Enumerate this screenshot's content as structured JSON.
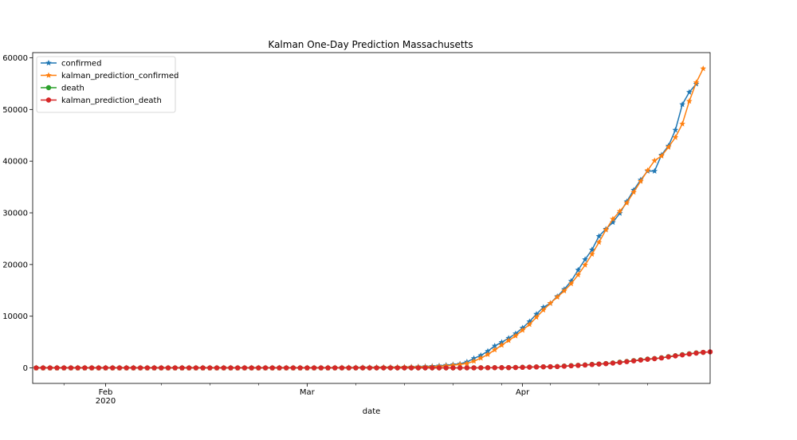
{
  "chart_data": {
    "type": "line",
    "title": "Kalman One-Day Prediction Massachusetts",
    "xlabel": "date",
    "ylabel": "",
    "x_start": "2020-01-22",
    "x_end": "2020-04-24",
    "ylim": [
      -3000,
      61000
    ],
    "yticks": [
      0,
      10000,
      20000,
      30000,
      40000,
      50000,
      60000
    ],
    "ytick_labels": [
      "0",
      "10000",
      "20000",
      "30000",
      "40000",
      "50000",
      "60000"
    ],
    "xtick_major": [
      {
        "date": "2020-02-01",
        "label": "Feb",
        "sublabel": "2020"
      },
      {
        "date": "2020-03-01",
        "label": "Mar",
        "sublabel": ""
      },
      {
        "date": "2020-04-01",
        "label": "Apr",
        "sublabel": ""
      }
    ],
    "xtick_minor": [
      "2020-01-26",
      "2020-02-09",
      "2020-02-16",
      "2020-02-23",
      "2020-03-08",
      "2020-03-15",
      "2020-03-22",
      "2020-03-29",
      "2020-04-05",
      "2020-04-12",
      "2020-04-19"
    ],
    "grid": false,
    "legend_position": "top-left",
    "series": [
      {
        "name": "confirmed",
        "color": "#1f77b4",
        "marker": "star",
        "points": [
          [
            "2020-01-22",
            0
          ],
          [
            "2020-02-01",
            1
          ],
          [
            "2020-02-15",
            1
          ],
          [
            "2020-03-01",
            1
          ],
          [
            "2020-03-10",
            92
          ],
          [
            "2020-03-15",
            164
          ],
          [
            "2020-03-19",
            328
          ],
          [
            "2020-03-20",
            413
          ],
          [
            "2020-03-21",
            525
          ],
          [
            "2020-03-22",
            646
          ],
          [
            "2020-03-23",
            777
          ],
          [
            "2020-03-24",
            1159
          ],
          [
            "2020-03-25",
            1838
          ],
          [
            "2020-03-26",
            2417
          ],
          [
            "2020-03-27",
            3240
          ],
          [
            "2020-03-28",
            4257
          ],
          [
            "2020-03-29",
            4955
          ],
          [
            "2020-03-30",
            5752
          ],
          [
            "2020-03-31",
            6620
          ],
          [
            "2020-04-01",
            7738
          ],
          [
            "2020-04-02",
            8966
          ],
          [
            "2020-04-03",
            10402
          ],
          [
            "2020-04-04",
            11736
          ],
          [
            "2020-04-05",
            12500
          ],
          [
            "2020-04-06",
            13837
          ],
          [
            "2020-04-07",
            15202
          ],
          [
            "2020-04-08",
            16790
          ],
          [
            "2020-04-09",
            18941
          ],
          [
            "2020-04-10",
            20974
          ],
          [
            "2020-04-11",
            22860
          ],
          [
            "2020-04-12",
            25475
          ],
          [
            "2020-04-13",
            26867
          ],
          [
            "2020-04-14",
            28163
          ],
          [
            "2020-04-15",
            29918
          ],
          [
            "2020-04-16",
            32181
          ],
          [
            "2020-04-17",
            34402
          ],
          [
            "2020-04-18",
            36372
          ],
          [
            "2020-04-19",
            38077
          ],
          [
            "2020-04-20",
            38077
          ],
          [
            "2020-04-21",
            41199
          ],
          [
            "2020-04-22",
            42944
          ],
          [
            "2020-04-23",
            46023
          ],
          [
            "2020-04-24",
            50969
          ],
          [
            "2020-04-25",
            53348
          ],
          [
            "2020-04-26",
            54938
          ]
        ]
      },
      {
        "name": "kalman_prediction_confirmed",
        "color": "#ff7f0e",
        "marker": "star",
        "points": [
          [
            "2020-01-22",
            0
          ],
          [
            "2020-02-01",
            1
          ],
          [
            "2020-02-15",
            1
          ],
          [
            "2020-03-01",
            1
          ],
          [
            "2020-03-10",
            70
          ],
          [
            "2020-03-15",
            140
          ],
          [
            "2020-03-19",
            230
          ],
          [
            "2020-03-20",
            300
          ],
          [
            "2020-03-21",
            400
          ],
          [
            "2020-03-22",
            520
          ],
          [
            "2020-03-23",
            660
          ],
          [
            "2020-03-24",
            860
          ],
          [
            "2020-03-25",
            1300
          ],
          [
            "2020-03-26",
            1900
          ],
          [
            "2020-03-27",
            2600
          ],
          [
            "2020-03-28",
            3500
          ],
          [
            "2020-03-29",
            4400
          ],
          [
            "2020-03-30",
            5300
          ],
          [
            "2020-03-31",
            6200
          ],
          [
            "2020-04-01",
            7300
          ],
          [
            "2020-04-02",
            8400
          ],
          [
            "2020-04-03",
            9800
          ],
          [
            "2020-04-04",
            11200
          ],
          [
            "2020-04-05",
            12500
          ],
          [
            "2020-04-06",
            13700
          ],
          [
            "2020-04-07",
            14900
          ],
          [
            "2020-04-08",
            16300
          ],
          [
            "2020-04-09",
            18000
          ],
          [
            "2020-04-10",
            19900
          ],
          [
            "2020-04-11",
            22000
          ],
          [
            "2020-04-12",
            24300
          ],
          [
            "2020-04-13",
            26700
          ],
          [
            "2020-04-14",
            28800
          ],
          [
            "2020-04-15",
            30300
          ],
          [
            "2020-04-16",
            31900
          ],
          [
            "2020-04-17",
            34000
          ],
          [
            "2020-04-18",
            36100
          ],
          [
            "2020-04-19",
            38200
          ],
          [
            "2020-04-20",
            40100
          ],
          [
            "2020-04-21",
            41000
          ],
          [
            "2020-04-22",
            42700
          ],
          [
            "2020-04-23",
            44600
          ],
          [
            "2020-04-24",
            47200
          ],
          [
            "2020-04-25",
            51600
          ],
          [
            "2020-04-26",
            55200
          ],
          [
            "2020-04-27",
            57900
          ]
        ]
      },
      {
        "name": "death",
        "color": "#2ca02c",
        "marker": "circle",
        "points": [
          [
            "2020-01-22",
            0
          ],
          [
            "2020-03-19",
            0
          ],
          [
            "2020-03-20",
            1
          ],
          [
            "2020-03-21",
            5
          ],
          [
            "2020-03-22",
            5
          ],
          [
            "2020-03-23",
            9
          ],
          [
            "2020-03-24",
            11
          ],
          [
            "2020-03-25",
            15
          ],
          [
            "2020-03-26",
            25
          ],
          [
            "2020-03-27",
            35
          ],
          [
            "2020-03-28",
            44
          ],
          [
            "2020-03-29",
            48
          ],
          [
            "2020-03-30",
            56
          ],
          [
            "2020-03-31",
            89
          ],
          [
            "2020-04-01",
            122
          ],
          [
            "2020-04-02",
            154
          ],
          [
            "2020-04-03",
            192
          ],
          [
            "2020-04-04",
            216
          ],
          [
            "2020-04-05",
            231
          ],
          [
            "2020-04-06",
            260
          ],
          [
            "2020-04-07",
            356
          ],
          [
            "2020-04-08",
            433
          ],
          [
            "2020-04-09",
            503
          ],
          [
            "2020-04-10",
            573
          ],
          [
            "2020-04-11",
            686
          ],
          [
            "2020-04-12",
            756
          ],
          [
            "2020-04-13",
            844
          ],
          [
            "2020-04-14",
            957
          ],
          [
            "2020-04-15",
            1108
          ],
          [
            "2020-04-16",
            1245
          ],
          [
            "2020-04-17",
            1404
          ],
          [
            "2020-04-18",
            1560
          ],
          [
            "2020-04-19",
            1706
          ],
          [
            "2020-04-20",
            1809
          ],
          [
            "2020-04-21",
            1961
          ],
          [
            "2020-04-22",
            2182
          ],
          [
            "2020-04-23",
            2360
          ],
          [
            "2020-04-24",
            2556
          ],
          [
            "2020-04-25",
            2730
          ],
          [
            "2020-04-26",
            2899
          ],
          [
            "2020-04-27",
            3003
          ]
        ]
      },
      {
        "name": "kalman_prediction_death",
        "color": "#d62728",
        "marker": "circle",
        "points": [
          [
            "2020-01-22",
            0
          ],
          [
            "2020-03-19",
            0
          ],
          [
            "2020-03-20",
            0
          ],
          [
            "2020-03-21",
            2
          ],
          [
            "2020-03-22",
            5
          ],
          [
            "2020-03-23",
            7
          ],
          [
            "2020-03-24",
            10
          ],
          [
            "2020-03-25",
            13
          ],
          [
            "2020-03-26",
            19
          ],
          [
            "2020-03-27",
            30
          ],
          [
            "2020-03-28",
            40
          ],
          [
            "2020-03-29",
            47
          ],
          [
            "2020-03-30",
            53
          ],
          [
            "2020-03-31",
            75
          ],
          [
            "2020-04-01",
            108
          ],
          [
            "2020-04-02",
            142
          ],
          [
            "2020-04-03",
            180
          ],
          [
            "2020-04-04",
            208
          ],
          [
            "2020-04-05",
            228
          ],
          [
            "2020-04-06",
            252
          ],
          [
            "2020-04-07",
            325
          ],
          [
            "2020-04-08",
            405
          ],
          [
            "2020-04-09",
            480
          ],
          [
            "2020-04-10",
            550
          ],
          [
            "2020-04-11",
            650
          ],
          [
            "2020-04-12",
            735
          ],
          [
            "2020-04-13",
            820
          ],
          [
            "2020-04-14",
            925
          ],
          [
            "2020-04-15",
            1065
          ],
          [
            "2020-04-16",
            1205
          ],
          [
            "2020-04-17",
            1360
          ],
          [
            "2020-04-18",
            1515
          ],
          [
            "2020-04-19",
            1665
          ],
          [
            "2020-04-20",
            1780
          ],
          [
            "2020-04-21",
            1925
          ],
          [
            "2020-04-22",
            2130
          ],
          [
            "2020-04-23",
            2320
          ],
          [
            "2020-04-24",
            2510
          ],
          [
            "2020-04-25",
            2690
          ],
          [
            "2020-04-26",
            2860
          ],
          [
            "2020-04-27",
            3010
          ],
          [
            "2020-04-28",
            3100
          ]
        ]
      }
    ]
  }
}
